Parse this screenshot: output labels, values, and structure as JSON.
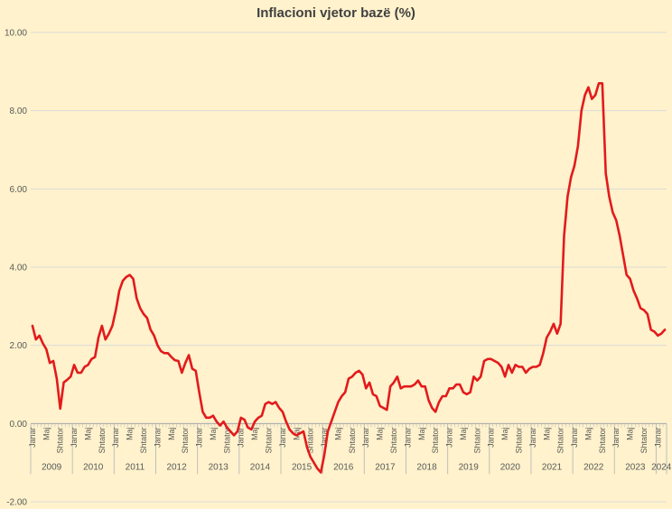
{
  "chart_data": {
    "type": "line",
    "title": "Inflacioni vjetor bazë (%)",
    "xlabel": "",
    "ylabel": "",
    "ylim": [
      -2,
      10
    ],
    "yticks": [
      "-2.00",
      "0.00",
      "2.00",
      "4.00",
      "6.00",
      "8.00",
      "10.00"
    ],
    "grid": true,
    "line_color": "#E31A1C",
    "background": "#FFF2CC",
    "years": [
      "2009",
      "2010",
      "2011",
      "2012",
      "2013",
      "2014",
      "2015",
      "2016",
      "2017",
      "2018",
      "2019",
      "2020",
      "2021",
      "2022",
      "2023"
    ],
    "last_year": "2024",
    "month_labels": [
      "Janar",
      "Maj",
      "Shtator"
    ],
    "series": [
      {
        "values": [
          2.5,
          2.15,
          2.25,
          2.05,
          1.9,
          1.55,
          1.6,
          1.15,
          0.38,
          1.05,
          1.12,
          1.2,
          1.5,
          1.3,
          1.3,
          1.45,
          1.5,
          1.65,
          1.7,
          2.2,
          2.5,
          2.15,
          2.3,
          2.5,
          2.9,
          3.4,
          3.65,
          3.75,
          3.8,
          3.7,
          3.2,
          2.95,
          2.8,
          2.7,
          2.4,
          2.25,
          2.0,
          1.85,
          1.8,
          1.8,
          1.7,
          1.62,
          1.6,
          1.3,
          1.55,
          1.75,
          1.4,
          1.35,
          0.8,
          0.3,
          0.15,
          0.15,
          0.2,
          0.05,
          -0.05,
          0.05,
          -0.1,
          -0.2,
          -0.3,
          -0.2,
          0.15,
          0.1,
          -0.1,
          -0.15,
          0.05,
          0.15,
          0.2,
          0.5,
          0.55,
          0.5,
          0.55,
          0.4,
          0.3,
          0.05,
          -0.15,
          -0.25,
          -0.3,
          -0.25,
          -0.2,
          -0.6,
          -0.85,
          -1.0,
          -1.15,
          -1.25,
          -0.8,
          -0.2,
          0.05,
          0.3,
          0.55,
          0.7,
          0.8,
          1.15,
          1.2,
          1.3,
          1.35,
          1.25,
          0.9,
          1.05,
          0.75,
          0.7,
          0.45,
          0.4,
          0.35,
          0.95,
          1.05,
          1.2,
          0.9,
          0.95,
          0.95,
          0.95,
          1.0,
          1.1,
          0.95,
          0.95,
          0.6,
          0.4,
          0.3,
          0.55,
          0.7,
          0.7,
          0.9,
          0.9,
          1.0,
          1.0,
          0.8,
          0.75,
          0.8,
          1.2,
          1.1,
          1.2,
          1.6,
          1.65,
          1.65,
          1.6,
          1.55,
          1.45,
          1.2,
          1.5,
          1.3,
          1.5,
          1.45,
          1.45,
          1.3,
          1.4,
          1.45,
          1.45,
          1.5,
          1.8,
          2.2,
          2.35,
          2.55,
          2.3,
          2.55,
          4.8,
          5.8,
          6.3,
          6.6,
          7.1,
          8.0,
          8.4,
          8.6,
          8.3,
          8.4,
          8.7,
          8.7,
          6.4,
          5.8,
          5.4,
          5.2,
          4.8,
          4.3,
          3.8,
          3.7,
          3.4,
          3.2,
          2.95,
          2.9,
          2.8,
          2.4,
          2.35,
          2.25,
          2.3,
          2.4
        ]
      }
    ]
  }
}
